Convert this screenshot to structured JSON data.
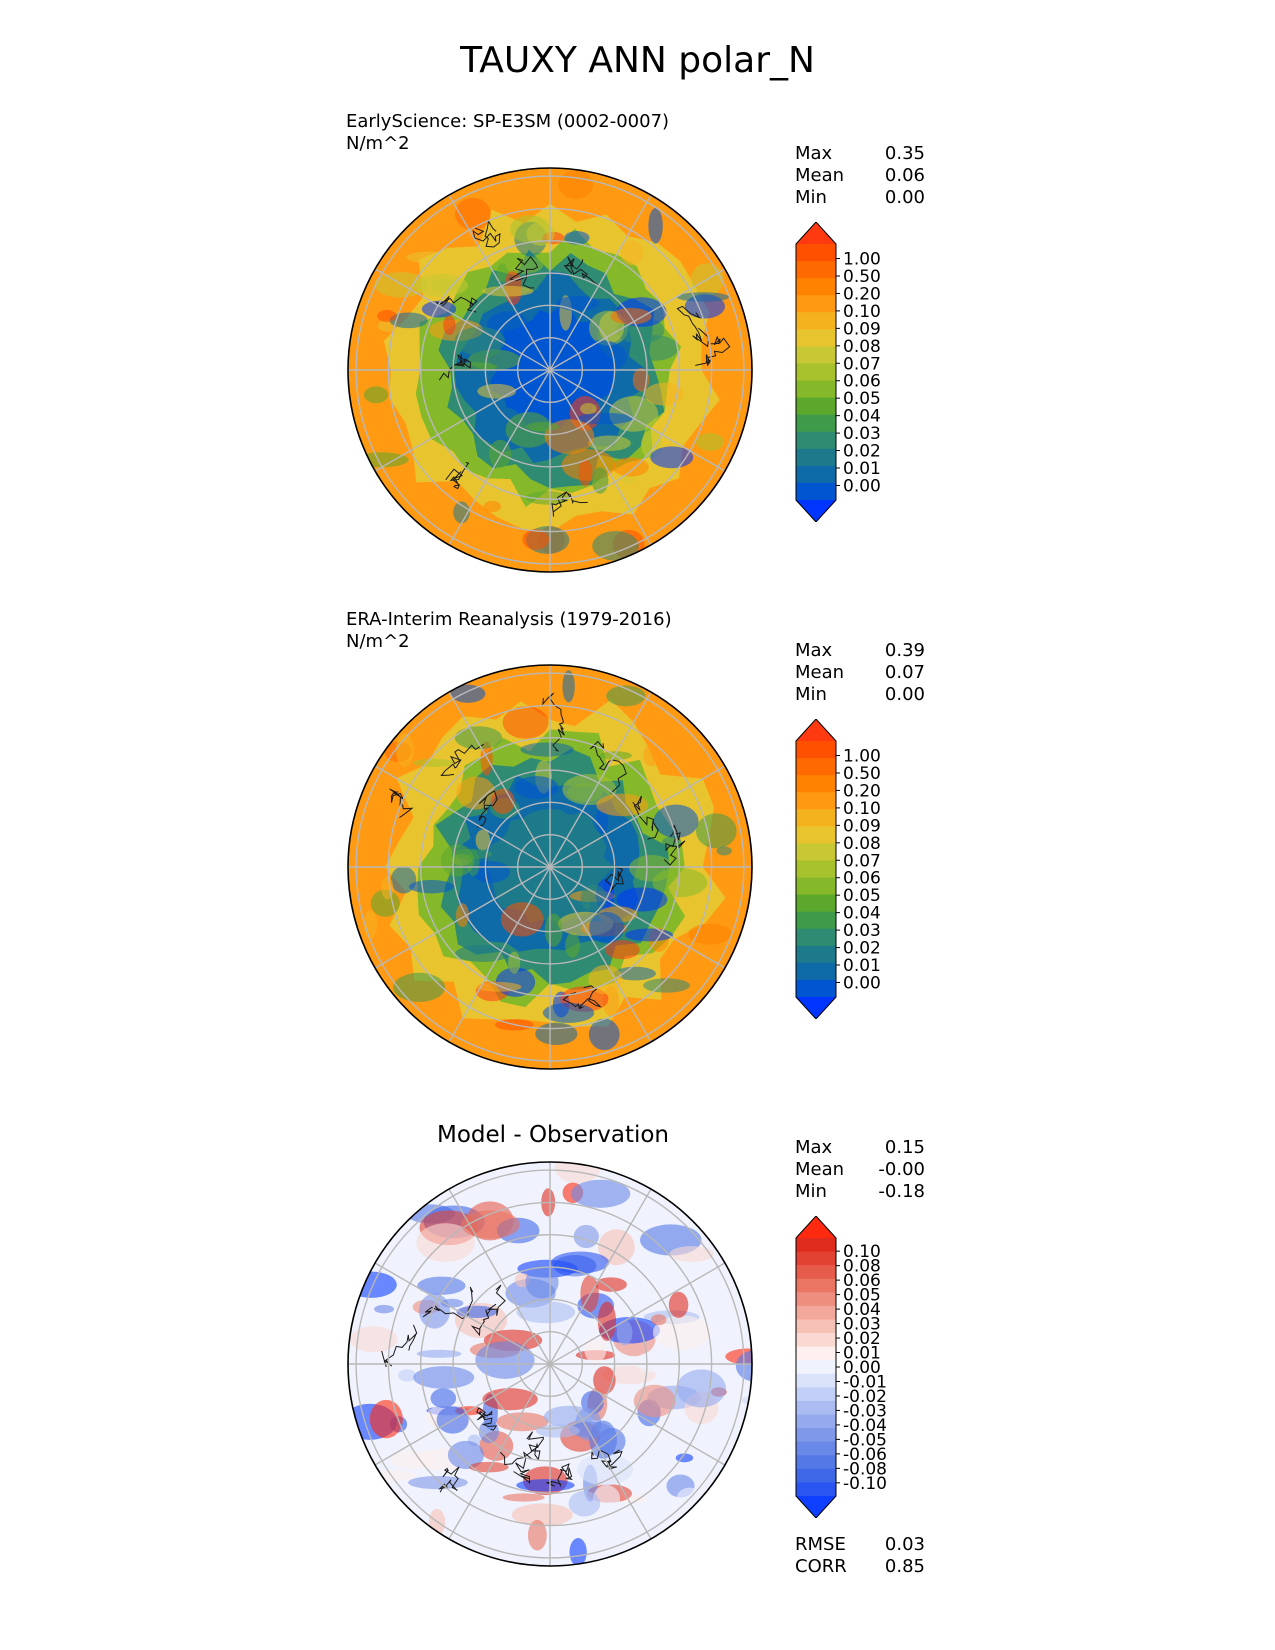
{
  "figure": {
    "title": "TAUXY ANN polar_N",
    "colors": {
      "seq": [
        "#0034ff",
        "#0056d1",
        "#0f6aa8",
        "#1d7a8a",
        "#2f8b72",
        "#3f9a4a",
        "#5ba82c",
        "#86b92a",
        "#a8c22e",
        "#c7c833",
        "#e8c52f",
        "#f5b21f",
        "#ff9a12",
        "#ff8200",
        "#ff6a00",
        "#ff5000",
        "#ff3a10"
      ],
      "div": [
        "#0f3fff",
        "#2a55f0",
        "#3f68e8",
        "#5478e6",
        "#6a88e8",
        "#7f98ea",
        "#95aaee",
        "#aabcf2",
        "#c2cff6",
        "#dbe3fa",
        "#f0f3fd",
        "#fdf0ee",
        "#fad9d2",
        "#f6c1b6",
        "#f2a89a",
        "#ee8e7e",
        "#ea7563",
        "#e65b4a",
        "#e24232",
        "#e02c1f",
        "#ff2a10"
      ]
    }
  },
  "panels": [
    {
      "title_line1": "EarlyScience: SP-E3SM (0002-0007)",
      "title_line2": "N/m^2",
      "stats": [
        {
          "label": "Max",
          "value": "0.35"
        },
        {
          "label": "Mean",
          "value": "0.06"
        },
        {
          "label": "Min",
          "value": "0.00"
        }
      ],
      "colorbar_ticks": [
        "1.00",
        "0.50",
        "0.20",
        "0.10",
        "0.09",
        "0.08",
        "0.07",
        "0.06",
        "0.05",
        "0.04",
        "0.03",
        "0.02",
        "0.01",
        "0.00"
      ]
    },
    {
      "title_line1": "ERA-Interim Reanalysis (1979-2016)",
      "title_line2": "N/m^2",
      "stats": [
        {
          "label": "Max",
          "value": "0.39"
        },
        {
          "label": "Mean",
          "value": "0.07"
        },
        {
          "label": "Min",
          "value": "0.00"
        }
      ],
      "colorbar_ticks": [
        "1.00",
        "0.50",
        "0.20",
        "0.10",
        "0.09",
        "0.08",
        "0.07",
        "0.06",
        "0.05",
        "0.04",
        "0.03",
        "0.02",
        "0.01",
        "0.00"
      ]
    },
    {
      "title": "Model - Observation",
      "stats": [
        {
          "label": "Max",
          "value": "0.15"
        },
        {
          "label": "Mean",
          "value": "-0.00"
        },
        {
          "label": "Min",
          "value": "-0.18"
        }
      ],
      "colorbar_ticks": [
        "0.10",
        "0.08",
        "0.06",
        "0.05",
        "0.04",
        "0.03",
        "0.02",
        "0.01",
        "0.00",
        "-0.01",
        "-0.02",
        "-0.03",
        "-0.04",
        "-0.05",
        "-0.06",
        "-0.08",
        "-0.10"
      ],
      "metrics": [
        {
          "label": "RMSE",
          "value": "0.03"
        },
        {
          "label": "CORR",
          "value": "0.85"
        }
      ]
    }
  ],
  "chart_data": [
    {
      "type": "heatmap",
      "projection": "north polar stereographic",
      "title": "EarlyScience: SP-E3SM (0002-0007)",
      "units": "N/m^2",
      "stats": {
        "max": 0.35,
        "mean": 0.06,
        "min": 0.0
      },
      "colorbar_levels": [
        0.0,
        0.01,
        0.02,
        0.03,
        0.04,
        0.05,
        0.06,
        0.07,
        0.08,
        0.09,
        0.1,
        0.2,
        0.5,
        1.0
      ],
      "colorbar_extend": "both"
    },
    {
      "type": "heatmap",
      "projection": "north polar stereographic",
      "title": "ERA-Interim Reanalysis (1979-2016)",
      "units": "N/m^2",
      "stats": {
        "max": 0.39,
        "mean": 0.07,
        "min": 0.0
      },
      "colorbar_levels": [
        0.0,
        0.01,
        0.02,
        0.03,
        0.04,
        0.05,
        0.06,
        0.07,
        0.08,
        0.09,
        0.1,
        0.2,
        0.5,
        1.0
      ],
      "colorbar_extend": "both"
    },
    {
      "type": "heatmap",
      "projection": "north polar stereographic",
      "title": "Model - Observation",
      "stats": {
        "max": 0.15,
        "mean": -0.0,
        "min": -0.18
      },
      "colorbar_levels": [
        -0.1,
        -0.08,
        -0.06,
        -0.05,
        -0.04,
        -0.03,
        -0.02,
        -0.01,
        0.0,
        0.01,
        0.02,
        0.03,
        0.04,
        0.05,
        0.06,
        0.08,
        0.1
      ],
      "colorbar_extend": "both",
      "metrics": {
        "rmse": 0.03,
        "corr": 0.85
      }
    }
  ]
}
